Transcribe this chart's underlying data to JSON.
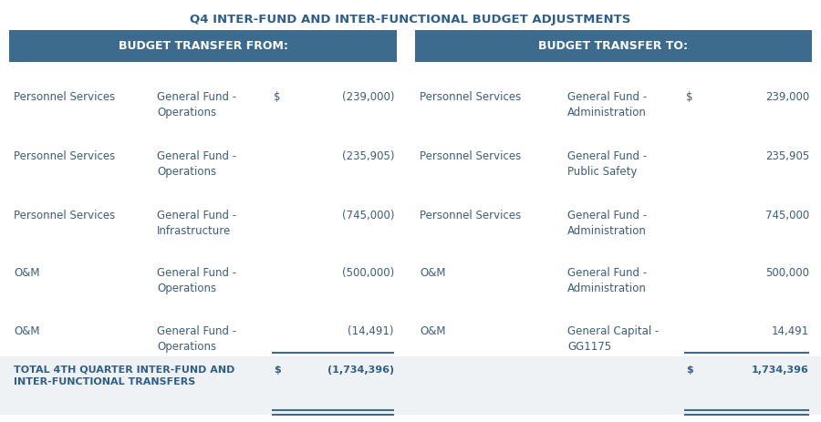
{
  "title": "Q4 INTER-FUND AND INTER-FUNCTIONAL BUDGET ADJUSTMENTS",
  "title_color": "#2e5f8a",
  "header_bg": "#3d6b8e",
  "header_text_color": "#ffffff",
  "body_text_color": "#3a5f7a",
  "total_text_color": "#2e5f8a",
  "bg_color": "#ffffff",
  "footer_bg": "#eef2f5",
  "left_header": "BUDGET TRANSFER FROM:",
  "right_header": "BUDGET TRANSFER TO:",
  "rows": [
    {
      "from_type": "Personnel Services",
      "from_fund": "General Fund -\nOperations",
      "from_symbol": "$",
      "from_amount": "(239,000)",
      "to_type": "Personnel Services",
      "to_fund": "General Fund -\nAdministration",
      "to_symbol": "$",
      "to_amount": "239,000"
    },
    {
      "from_type": "Personnel Services",
      "from_fund": "General Fund -\nOperations",
      "from_symbol": "",
      "from_amount": "(235,905)",
      "to_type": "Personnel Services",
      "to_fund": "General Fund -\nPublic Safety",
      "to_symbol": "",
      "to_amount": "235,905"
    },
    {
      "from_type": "Personnel Services",
      "from_fund": "General Fund -\nInfrastructure",
      "from_symbol": "",
      "from_amount": "(745,000)",
      "to_type": "Personnel Services",
      "to_fund": "General Fund -\nAdministration",
      "to_symbol": "",
      "to_amount": "745,000"
    },
    {
      "from_type": "O&M",
      "from_fund": "General Fund -\nOperations",
      "from_symbol": "",
      "from_amount": "(500,000)",
      "to_type": "O&M",
      "to_fund": "General Fund -\nAdministration",
      "to_symbol": "",
      "to_amount": "500,000"
    },
    {
      "from_type": "O&M",
      "from_fund": "General Fund -\nOperations",
      "from_symbol": "",
      "from_amount": "(14,491)",
      "to_type": "O&M",
      "to_fund": "General Capital -\nGG1175",
      "to_symbol": "",
      "to_amount": "14,491"
    }
  ],
  "total_label": "TOTAL 4TH QUARTER INTER-FUND AND\nINTER-FUNCTIONAL TRANSFERS",
  "total_from_symbol": "$",
  "total_from_amount": "(1,734,396)",
  "total_to_symbol": "$",
  "total_to_amount": "1,734,396"
}
